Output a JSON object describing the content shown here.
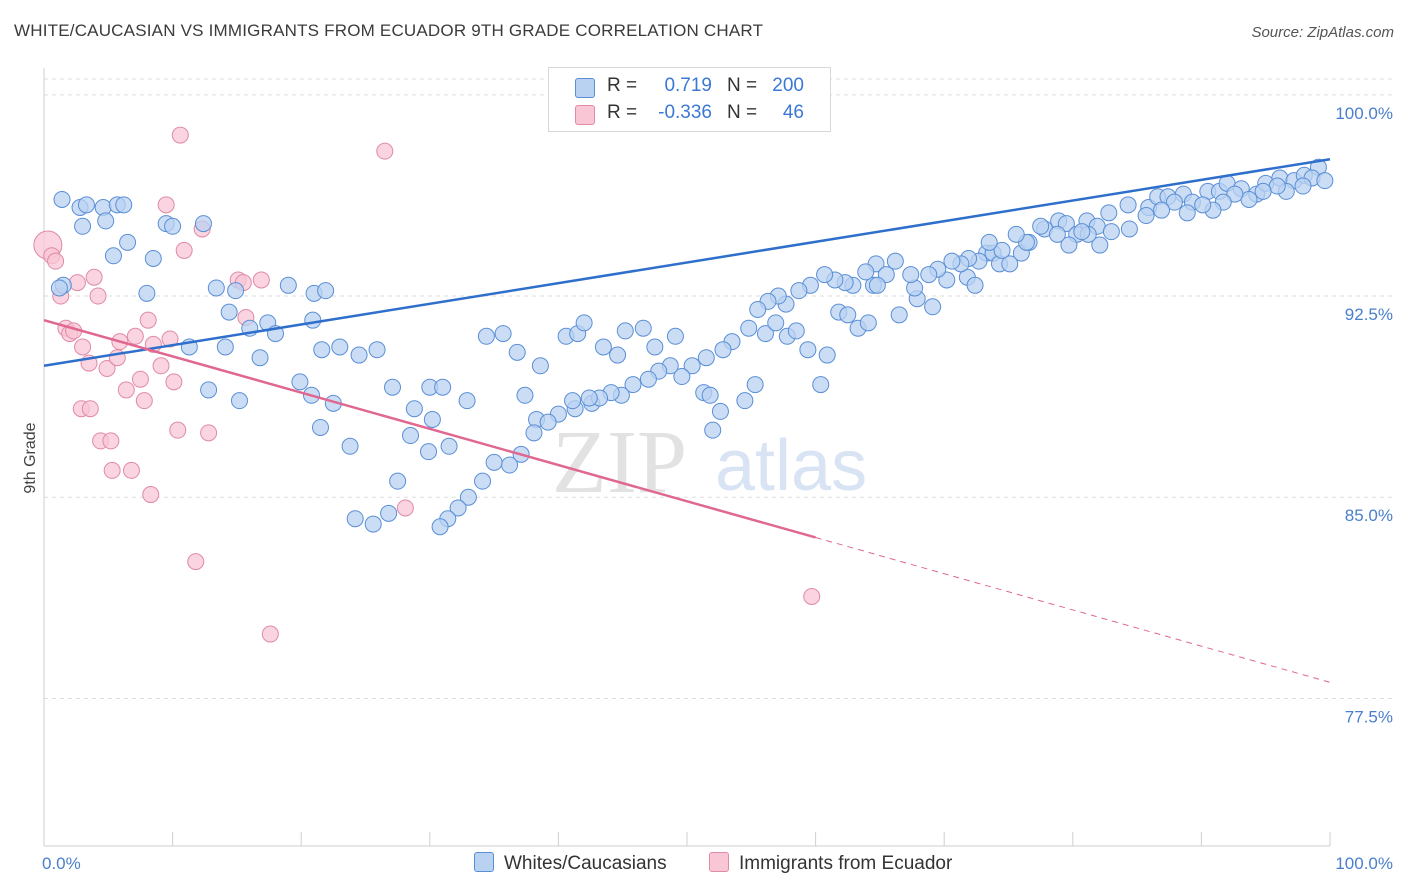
{
  "title": "WHITE/CAUCASIAN VS IMMIGRANTS FROM ECUADOR 9TH GRADE CORRELATION CHART",
  "source": "Source: ZipAtlas.com",
  "watermark_zip": "ZIP",
  "watermark_atlas": "atlas",
  "legend": {
    "rows": [
      {
        "r_label": "R =",
        "r_value": "0.719",
        "n_label": "N =",
        "n_value": "200"
      },
      {
        "r_label": "R =",
        "r_value": "-0.336",
        "n_label": "N =",
        "n_value": "46"
      }
    ]
  },
  "colors": {
    "blue_fill": "#b9d2f2",
    "blue_stroke": "#5a8fd6",
    "blue_line": "#2f6fcc",
    "pink_fill": "#f8c6d5",
    "pink_stroke": "#e08aa6",
    "pink_line": "#e06890",
    "axis_label": "#4a7fcc",
    "grid": "#dddddd"
  },
  "chart_data": {
    "type": "scatter",
    "xlabel": "",
    "ylabel": "9th Grade",
    "xlim": [
      0,
      100
    ],
    "ylim": [
      72.0,
      101.0
    ],
    "x_tick_labels": [
      "0.0%",
      "100.0%"
    ],
    "y_ticks": [
      100.0,
      92.5,
      85.0,
      77.5
    ],
    "y_tick_labels": [
      "100.0%",
      "92.5%",
      "85.0%",
      "77.5%"
    ],
    "grid": true,
    "legend_position": "top-center",
    "series": [
      {
        "name": "Whites/Caucasians",
        "color": "#b9d2f2",
        "trend": {
          "x": [
            0,
            100
          ],
          "y": [
            89.9,
            97.6
          ],
          "style": "solid"
        },
        "points": [
          [
            1.5,
            92.9
          ],
          [
            1.2,
            92.8
          ],
          [
            1.4,
            96.1
          ],
          [
            2.8,
            95.8
          ],
          [
            3.0,
            95.1
          ],
          [
            4.6,
            95.8
          ],
          [
            3.3,
            95.9
          ],
          [
            4.8,
            95.3
          ],
          [
            5.7,
            95.9
          ],
          [
            6.2,
            95.9
          ],
          [
            5.4,
            94.0
          ],
          [
            6.5,
            94.5
          ],
          [
            8.5,
            93.9
          ],
          [
            8.0,
            92.6
          ],
          [
            9.5,
            95.2
          ],
          [
            10.0,
            95.1
          ],
          [
            12.4,
            95.2
          ],
          [
            13.4,
            92.8
          ],
          [
            14.9,
            92.7
          ],
          [
            14.4,
            91.9
          ],
          [
            11.3,
            90.6
          ],
          [
            12.8,
            89.0
          ],
          [
            14.1,
            90.6
          ],
          [
            15.2,
            88.6
          ],
          [
            16.0,
            91.3
          ],
          [
            16.8,
            90.2
          ],
          [
            17.4,
            91.5
          ],
          [
            18.0,
            91.1
          ],
          [
            19.0,
            92.9
          ],
          [
            21.0,
            92.6
          ],
          [
            21.9,
            92.7
          ],
          [
            20.9,
            91.6
          ],
          [
            21.6,
            90.5
          ],
          [
            23.0,
            90.6
          ],
          [
            24.5,
            90.3
          ],
          [
            25.9,
            90.5
          ],
          [
            27.1,
            89.1
          ],
          [
            28.8,
            88.3
          ],
          [
            30.0,
            89.1
          ],
          [
            31.0,
            89.1
          ],
          [
            30.2,
            87.9
          ],
          [
            31.5,
            86.9
          ],
          [
            32.9,
            88.6
          ],
          [
            34.4,
            91.0
          ],
          [
            35.7,
            91.1
          ],
          [
            36.8,
            90.4
          ],
          [
            37.4,
            88.8
          ],
          [
            38.3,
            87.9
          ],
          [
            38.6,
            89.9
          ],
          [
            40.6,
            91.0
          ],
          [
            41.5,
            91.1
          ],
          [
            42.0,
            91.5
          ],
          [
            42.6,
            88.5
          ],
          [
            41.3,
            88.3
          ],
          [
            43.5,
            90.6
          ],
          [
            44.6,
            90.3
          ],
          [
            45.2,
            91.2
          ],
          [
            46.6,
            91.3
          ],
          [
            47.5,
            90.6
          ],
          [
            49.1,
            91.0
          ],
          [
            51.3,
            88.9
          ],
          [
            51.8,
            88.8
          ],
          [
            52.6,
            88.2
          ],
          [
            52.0,
            87.5
          ],
          [
            54.5,
            88.6
          ],
          [
            55.3,
            89.2
          ],
          [
            56.1,
            91.1
          ],
          [
            56.9,
            91.5
          ],
          [
            57.8,
            91.0
          ],
          [
            58.5,
            91.2
          ],
          [
            59.4,
            90.5
          ],
          [
            60.4,
            89.2
          ],
          [
            60.9,
            90.3
          ],
          [
            61.8,
            91.9
          ],
          [
            62.5,
            91.8
          ],
          [
            63.3,
            91.3
          ],
          [
            64.1,
            91.5
          ],
          [
            64.5,
            92.9
          ],
          [
            64.7,
            93.7
          ],
          [
            66.5,
            91.8
          ],
          [
            67.9,
            92.4
          ],
          [
            69.1,
            92.1
          ],
          [
            70.2,
            93.1
          ],
          [
            71.8,
            93.2
          ],
          [
            72.4,
            92.9
          ],
          [
            73.3,
            94.1
          ],
          [
            73.8,
            94.1
          ],
          [
            74.3,
            93.7
          ],
          [
            75.1,
            93.7
          ],
          [
            76.0,
            94.1
          ],
          [
            76.6,
            94.5
          ],
          [
            77.8,
            95.0
          ],
          [
            78.9,
            95.3
          ],
          [
            79.5,
            95.2
          ],
          [
            80.3,
            94.8
          ],
          [
            81.1,
            95.3
          ],
          [
            81.9,
            95.1
          ],
          [
            82.8,
            95.6
          ],
          [
            84.3,
            95.9
          ],
          [
            85.9,
            95.8
          ],
          [
            86.6,
            96.2
          ],
          [
            87.4,
            96.2
          ],
          [
            88.6,
            96.3
          ],
          [
            89.3,
            96.0
          ],
          [
            90.5,
            96.4
          ],
          [
            91.4,
            96.4
          ],
          [
            92.0,
            96.7
          ],
          [
            93.1,
            96.5
          ],
          [
            94.3,
            96.3
          ],
          [
            95.0,
            96.7
          ],
          [
            96.1,
            96.9
          ],
          [
            97.2,
            96.8
          ],
          [
            98.0,
            97.0
          ],
          [
            99.1,
            97.3
          ],
          [
            98.6,
            96.9
          ],
          [
            99.6,
            96.8
          ],
          [
            97.9,
            96.6
          ],
          [
            96.6,
            96.4
          ],
          [
            95.9,
            96.6
          ],
          [
            94.8,
            96.4
          ],
          [
            93.7,
            96.1
          ],
          [
            92.6,
            96.3
          ],
          [
            91.7,
            96.0
          ],
          [
            90.9,
            95.7
          ],
          [
            90.1,
            95.9
          ],
          [
            88.9,
            95.6
          ],
          [
            87.9,
            96.0
          ],
          [
            86.9,
            95.7
          ],
          [
            85.7,
            95.5
          ],
          [
            84.4,
            95.0
          ],
          [
            83.0,
            94.9
          ],
          [
            82.1,
            94.4
          ],
          [
            81.2,
            94.8
          ],
          [
            80.7,
            94.9
          ],
          [
            79.7,
            94.4
          ],
          [
            78.8,
            94.8
          ],
          [
            77.5,
            95.1
          ],
          [
            76.4,
            94.5
          ],
          [
            75.6,
            94.8
          ],
          [
            74.5,
            94.2
          ],
          [
            73.5,
            94.5
          ],
          [
            72.7,
            93.8
          ],
          [
            71.9,
            93.9
          ],
          [
            71.3,
            93.7
          ],
          [
            70.6,
            93.8
          ],
          [
            69.5,
            93.5
          ],
          [
            68.8,
            93.3
          ],
          [
            67.7,
            92.8
          ],
          [
            67.4,
            93.3
          ],
          [
            66.2,
            93.8
          ],
          [
            65.5,
            93.3
          ],
          [
            64.8,
            92.9
          ],
          [
            63.9,
            93.4
          ],
          [
            62.9,
            92.9
          ],
          [
            62.3,
            93.0
          ],
          [
            61.5,
            93.1
          ],
          [
            60.7,
            93.3
          ],
          [
            59.6,
            92.9
          ],
          [
            58.7,
            92.7
          ],
          [
            57.7,
            92.2
          ],
          [
            57.1,
            92.5
          ],
          [
            56.3,
            92.3
          ],
          [
            55.5,
            92.0
          ],
          [
            54.8,
            91.3
          ],
          [
            53.5,
            90.8
          ],
          [
            52.8,
            90.5
          ],
          [
            51.5,
            90.2
          ],
          [
            50.4,
            89.9
          ],
          [
            49.6,
            89.5
          ],
          [
            48.7,
            89.9
          ],
          [
            47.8,
            89.7
          ],
          [
            47.0,
            89.4
          ],
          [
            45.8,
            89.2
          ],
          [
            44.9,
            88.8
          ],
          [
            44.1,
            88.9
          ],
          [
            43.2,
            88.7
          ],
          [
            42.4,
            88.7
          ],
          [
            41.1,
            88.6
          ],
          [
            40.0,
            88.1
          ],
          [
            39.2,
            87.8
          ],
          [
            38.1,
            87.4
          ],
          [
            37.1,
            86.6
          ],
          [
            36.2,
            86.2
          ],
          [
            35.0,
            86.3
          ],
          [
            34.1,
            85.6
          ],
          [
            33.0,
            85.0
          ],
          [
            32.2,
            84.6
          ],
          [
            31.4,
            84.2
          ],
          [
            30.8,
            83.9
          ],
          [
            29.9,
            86.7
          ],
          [
            28.5,
            87.3
          ],
          [
            27.5,
            85.6
          ],
          [
            26.8,
            84.4
          ],
          [
            25.6,
            84.0
          ],
          [
            24.2,
            84.2
          ],
          [
            23.8,
            86.9
          ],
          [
            22.5,
            88.5
          ],
          [
            21.5,
            87.6
          ],
          [
            20.8,
            88.8
          ],
          [
            19.9,
            89.3
          ]
        ]
      },
      {
        "name": "Immigrants from Ecuador",
        "color": "#f8c6d5",
        "trend": {
          "x": [
            0,
            60
          ],
          "y": [
            91.6,
            83.5
          ],
          "style": "solid",
          "dashed_extension": {
            "x": [
              60,
              100
            ],
            "y": [
              83.5,
              78.1
            ]
          }
        },
        "points": [
          [
            0.3,
            94.4
          ],
          [
            0.6,
            94.0
          ],
          [
            0.9,
            93.8
          ],
          [
            1.3,
            92.5
          ],
          [
            1.7,
            91.3
          ],
          [
            2.0,
            91.1
          ],
          [
            2.3,
            91.2
          ],
          [
            2.6,
            93.0
          ],
          [
            2.9,
            88.3
          ],
          [
            3.0,
            90.6
          ],
          [
            3.6,
            88.3
          ],
          [
            3.5,
            90.0
          ],
          [
            3.9,
            93.2
          ],
          [
            4.2,
            92.5
          ],
          [
            4.4,
            87.1
          ],
          [
            4.9,
            89.8
          ],
          [
            5.2,
            87.1
          ],
          [
            5.3,
            86.0
          ],
          [
            5.7,
            90.2
          ],
          [
            5.9,
            90.8
          ],
          [
            6.4,
            89.0
          ],
          [
            6.8,
            86.0
          ],
          [
            7.1,
            91.0
          ],
          [
            7.5,
            89.4
          ],
          [
            7.8,
            88.6
          ],
          [
            8.1,
            91.6
          ],
          [
            8.3,
            85.1
          ],
          [
            8.5,
            90.7
          ],
          [
            9.1,
            89.9
          ],
          [
            9.5,
            95.9
          ],
          [
            9.8,
            90.9
          ],
          [
            10.1,
            89.3
          ],
          [
            10.4,
            87.5
          ],
          [
            10.6,
            98.5
          ],
          [
            10.9,
            94.2
          ],
          [
            11.8,
            82.6
          ],
          [
            12.3,
            95.0
          ],
          [
            12.8,
            87.4
          ],
          [
            15.1,
            93.1
          ],
          [
            15.5,
            93.0
          ],
          [
            15.7,
            91.7
          ],
          [
            16.9,
            93.1
          ],
          [
            17.6,
            79.9
          ],
          [
            26.5,
            97.9
          ],
          [
            28.1,
            84.6
          ],
          [
            59.7,
            81.3
          ]
        ]
      }
    ]
  }
}
